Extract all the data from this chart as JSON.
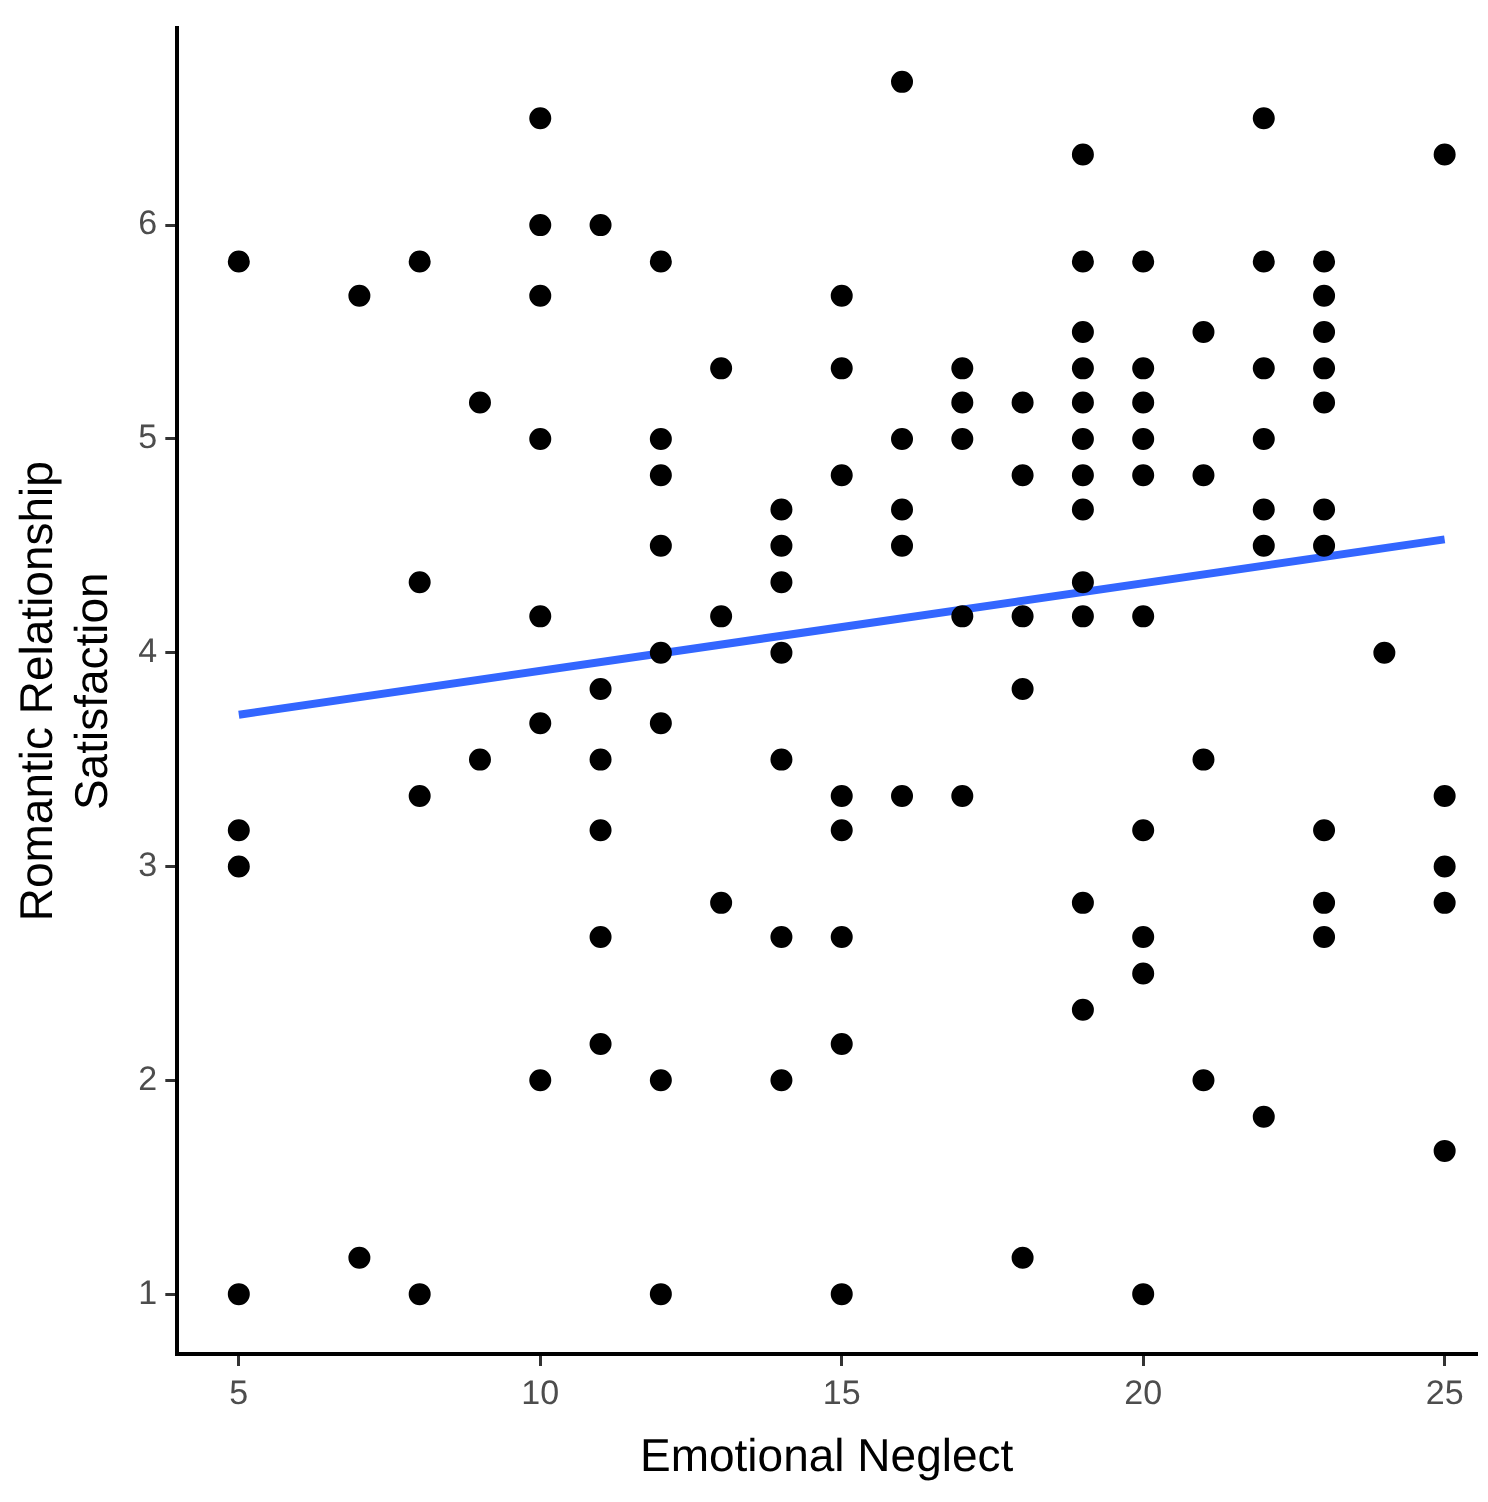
{
  "chart_data": {
    "type": "scatter",
    "xlabel": "Emotional Neglect",
    "ylabel": "Romantic Relationship Satisfaction",
    "xlim": [
      3.98,
      25.52
    ],
    "ylim": [
      0.72,
      6.92
    ],
    "xticks": [
      5,
      10,
      15,
      20,
      25
    ],
    "yticks": [
      1,
      2,
      3,
      4,
      5,
      6
    ],
    "grid": false,
    "legend": false,
    "series": [
      {
        "color": "#000000",
        "marker": "circle",
        "x": [
          5,
          5,
          5,
          5,
          7,
          7,
          8,
          8,
          8,
          8,
          9,
          9,
          10,
          10,
          10,
          10,
          10,
          10,
          10,
          11,
          11,
          11,
          11,
          11,
          11,
          12,
          12,
          12,
          12,
          12,
          12,
          12,
          12,
          13,
          13,
          13,
          14,
          14,
          14,
          14,
          14,
          14,
          14,
          15,
          15,
          15,
          15,
          15,
          15,
          15,
          15,
          16,
          16,
          16,
          16,
          16,
          17,
          17,
          17,
          17,
          17,
          18,
          18,
          18,
          18,
          18,
          19,
          19,
          19,
          19,
          19,
          19,
          19,
          19,
          19,
          19,
          19,
          19,
          20,
          20,
          20,
          20,
          20,
          20,
          20,
          20,
          20,
          20,
          21,
          21,
          21,
          21,
          22,
          22,
          22,
          22,
          22,
          22,
          22,
          23,
          23,
          23,
          23,
          23,
          23,
          23,
          23,
          23,
          23,
          24,
          25,
          25,
          25,
          25,
          25
        ],
        "values": [
          5.83,
          3.17,
          3.0,
          1.0,
          5.67,
          1.17,
          5.83,
          4.33,
          3.33,
          1.0,
          5.17,
          3.5,
          6.5,
          6.0,
          5.67,
          5.0,
          4.17,
          3.67,
          2.0,
          6.0,
          3.83,
          3.5,
          3.17,
          2.67,
          2.17,
          5.83,
          5.0,
          4.83,
          4.5,
          4.0,
          3.67,
          2.0,
          1.0,
          5.33,
          4.17,
          2.83,
          4.67,
          4.5,
          4.33,
          4.0,
          3.5,
          2.67,
          2.0,
          5.67,
          5.33,
          4.83,
          3.33,
          3.17,
          2.67,
          2.17,
          1.0,
          6.67,
          5.0,
          4.67,
          4.5,
          3.33,
          5.33,
          5.17,
          5.0,
          4.17,
          3.33,
          5.17,
          4.83,
          4.17,
          3.83,
          1.17,
          6.33,
          5.83,
          5.5,
          5.33,
          5.17,
          5.0,
          4.83,
          4.67,
          4.33,
          4.17,
          2.83,
          2.33,
          5.83,
          5.33,
          5.17,
          5.0,
          4.83,
          4.17,
          3.17,
          2.67,
          2.5,
          1.0,
          5.5,
          4.83,
          3.5,
          2.0,
          6.5,
          5.83,
          5.33,
          5.0,
          4.67,
          4.5,
          1.83,
          5.83,
          5.67,
          5.5,
          5.33,
          5.17,
          4.67,
          4.5,
          3.17,
          2.83,
          2.67,
          4.0,
          6.33,
          3.33,
          3.0,
          2.83,
          1.67
        ]
      },
      {
        "type": "line",
        "marker": "none",
        "color": "#3366ff",
        "x": [
          5,
          25
        ],
        "values": [
          3.71,
          4.53
        ]
      }
    ]
  }
}
